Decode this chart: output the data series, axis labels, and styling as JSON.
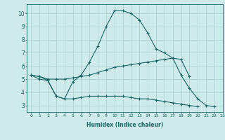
{
  "xlabel": "Humidex (Indice chaleur)",
  "background_color": "#ceeaea",
  "grid_color": "#aacccc",
  "line_color": "#1a6666",
  "hours": [
    0,
    1,
    2,
    3,
    4,
    5,
    6,
    7,
    8,
    9,
    10,
    11,
    12,
    13,
    14,
    15,
    16,
    17,
    18,
    19,
    20,
    21,
    22,
    23
  ],
  "line_max": [
    5.3,
    5.2,
    4.9,
    3.7,
    3.5,
    4.8,
    5.3,
    6.3,
    7.5,
    9.0,
    10.2,
    10.2,
    10.0,
    9.5,
    8.5,
    7.3,
    7.0,
    6.6,
    5.3,
    4.3,
    3.5,
    3.0,
    2.9,
    null
  ],
  "line_mean": [
    5.3,
    5.2,
    5.0,
    5.0,
    5.0,
    5.1,
    5.2,
    5.3,
    5.5,
    5.7,
    5.9,
    6.0,
    6.1,
    6.2,
    6.3,
    6.4,
    6.5,
    6.6,
    6.5,
    5.2,
    null,
    null,
    null,
    null
  ],
  "line_min": [
    5.3,
    5.0,
    4.9,
    3.7,
    3.5,
    3.5,
    3.6,
    3.7,
    3.7,
    3.7,
    3.7,
    3.7,
    3.6,
    3.5,
    3.5,
    3.4,
    3.3,
    3.2,
    3.1,
    3.0,
    2.9,
    null,
    null,
    null
  ],
  "ylim": [
    2.5,
    10.7
  ],
  "xlim": [
    -0.5,
    23
  ],
  "yticks": [
    3,
    4,
    5,
    6,
    7,
    8,
    9,
    10
  ]
}
